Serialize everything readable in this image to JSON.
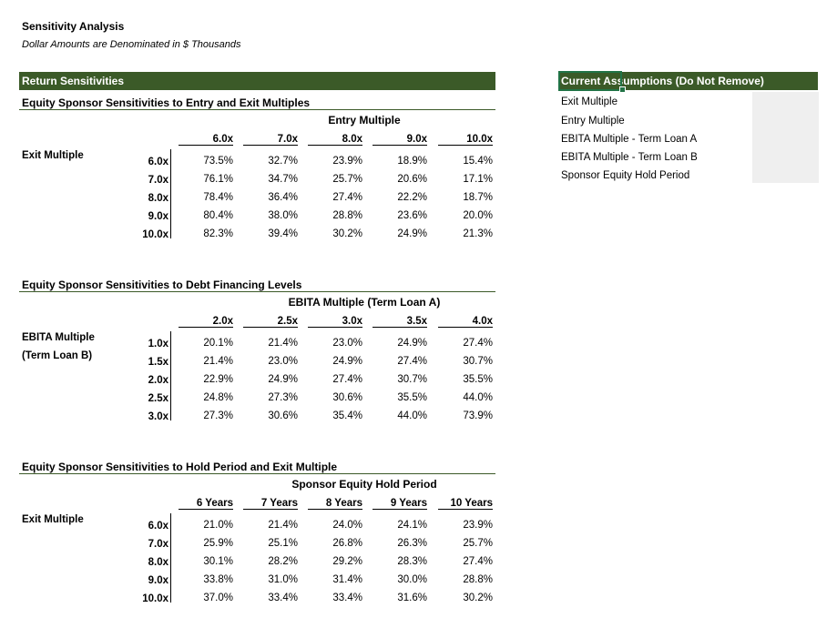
{
  "header": {
    "title": "Sensitivity Analysis",
    "subtitle": "Dollar Amounts are Denominated in $ Thousands"
  },
  "returns_bar": "Return Sensitivities",
  "assumptions": {
    "bar": "Current Assumptions (Do Not Remove)",
    "items": [
      "Exit Multiple",
      "Entry Multiple",
      "EBITA Multiple - Term Loan A",
      "EBITA Multiple - Term Loan B",
      "Sponsor Equity Hold Period"
    ]
  },
  "tables": [
    {
      "title": "Equity Sponsor Sensitivities to Entry and Exit Multiples",
      "col_title": "Entry Multiple",
      "row_title_1": "Exit Multiple",
      "row_title_2": "",
      "cols": [
        "6.0x",
        "7.0x",
        "8.0x",
        "9.0x",
        "10.0x"
      ],
      "rows": [
        "6.0x",
        "7.0x",
        "8.0x",
        "9.0x",
        "10.0x"
      ],
      "values": [
        [
          "73.5%",
          "32.7%",
          "23.9%",
          "18.9%",
          "15.4%"
        ],
        [
          "76.1%",
          "34.7%",
          "25.7%",
          "20.6%",
          "17.1%"
        ],
        [
          "78.4%",
          "36.4%",
          "27.4%",
          "22.2%",
          "18.7%"
        ],
        [
          "80.4%",
          "38.0%",
          "28.8%",
          "23.6%",
          "20.0%"
        ],
        [
          "82.3%",
          "39.4%",
          "30.2%",
          "24.9%",
          "21.3%"
        ]
      ]
    },
    {
      "title": "Equity Sponsor Sensitivities to Debt Financing Levels",
      "col_title": "EBITA Multiple (Term Loan A)",
      "row_title_1": "EBITA Multiple",
      "row_title_2": "(Term Loan B)",
      "cols": [
        "2.0x",
        "2.5x",
        "3.0x",
        "3.5x",
        "4.0x"
      ],
      "rows": [
        "1.0x",
        "1.5x",
        "2.0x",
        "2.5x",
        "3.0x"
      ],
      "values": [
        [
          "20.1%",
          "21.4%",
          "23.0%",
          "24.9%",
          "27.4%"
        ],
        [
          "21.4%",
          "23.0%",
          "24.9%",
          "27.4%",
          "30.7%"
        ],
        [
          "22.9%",
          "24.9%",
          "27.4%",
          "30.7%",
          "35.5%"
        ],
        [
          "24.8%",
          "27.3%",
          "30.6%",
          "35.5%",
          "44.0%"
        ],
        [
          "27.3%",
          "30.6%",
          "35.4%",
          "44.0%",
          "73.9%"
        ]
      ]
    },
    {
      "title": "Equity Sponsor Sensitivities to Hold Period and Exit Multiple",
      "col_title": "Sponsor Equity Hold Period",
      "row_title_1": "Exit Multiple",
      "row_title_2": "",
      "cols": [
        "6 Years",
        "7 Years",
        "8 Years",
        "9 Years",
        "10 Years"
      ],
      "rows": [
        "6.0x",
        "7.0x",
        "8.0x",
        "9.0x",
        "10.0x"
      ],
      "values": [
        [
          "21.0%",
          "21.4%",
          "24.0%",
          "24.1%",
          "23.9%"
        ],
        [
          "25.9%",
          "25.1%",
          "26.8%",
          "26.3%",
          "25.7%"
        ],
        [
          "30.1%",
          "28.2%",
          "29.2%",
          "28.3%",
          "27.4%"
        ],
        [
          "33.8%",
          "31.0%",
          "31.4%",
          "30.0%",
          "28.8%"
        ],
        [
          "37.0%",
          "33.4%",
          "33.4%",
          "31.6%",
          "30.2%"
        ]
      ]
    }
  ]
}
